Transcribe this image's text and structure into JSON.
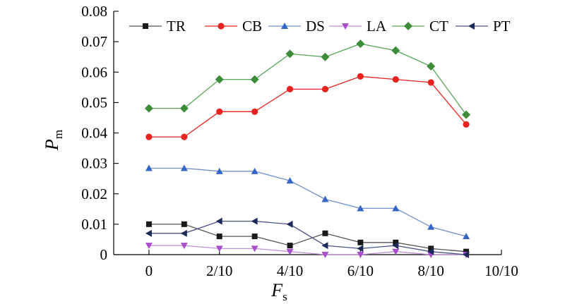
{
  "chart_data": {
    "type": "line",
    "xlabel": {
      "main": "F",
      "sub": "s"
    },
    "ylabel": {
      "main": "P",
      "sub": "m"
    },
    "x": [
      0,
      0.1,
      0.2,
      0.3,
      0.4,
      0.5,
      0.6,
      0.7,
      0.8,
      0.9
    ],
    "xlim": [
      -0.1,
      1.0
    ],
    "ylim": [
      0,
      0.08
    ],
    "xticks": [
      {
        "value": 0,
        "label": "0"
      },
      {
        "value": 0.2,
        "label": "2/10"
      },
      {
        "value": 0.4,
        "label": "4/10"
      },
      {
        "value": 0.6,
        "label": "6/10"
      },
      {
        "value": 0.8,
        "label": "8/10"
      },
      {
        "value": 1.0,
        "label": "10/10"
      }
    ],
    "yticks": [
      {
        "value": 0,
        "label": "0"
      },
      {
        "value": 0.01,
        "label": "0.01"
      },
      {
        "value": 0.02,
        "label": "0.02"
      },
      {
        "value": 0.03,
        "label": "0.03"
      },
      {
        "value": 0.04,
        "label": "0.04"
      },
      {
        "value": 0.05,
        "label": "0.05"
      },
      {
        "value": 0.06,
        "label": "0.06"
      },
      {
        "value": 0.07,
        "label": "0.07"
      },
      {
        "value": 0.08,
        "label": "0.08"
      }
    ],
    "grid": false,
    "legend": {
      "placement": "top",
      "orientation": "horizontal"
    },
    "series": [
      {
        "name": "TR",
        "marker": "square",
        "marker_color": "#1a1a1a",
        "line_color": "#555555",
        "values": [
          0.01,
          0.01,
          0.006,
          0.006,
          0.003,
          0.007,
          0.004,
          0.004,
          0.002,
          0.001
        ]
      },
      {
        "name": "CB",
        "marker": "circle",
        "marker_color": "#e8231f",
        "line_color": "#e8231f",
        "values": [
          0.0387,
          0.0387,
          0.047,
          0.047,
          0.0544,
          0.0544,
          0.0586,
          0.0576,
          0.0566,
          0.0428
        ]
      },
      {
        "name": "DS",
        "marker": "triangle-up",
        "marker_color": "#3566c6",
        "line_color": "#6f8fca",
        "values": [
          0.0284,
          0.0284,
          0.0274,
          0.0274,
          0.0243,
          0.0182,
          0.0152,
          0.0152,
          0.0091,
          0.006
        ]
      },
      {
        "name": "LA",
        "marker": "triangle-down",
        "marker_color": "#a84fc9",
        "line_color": "#c08fd6",
        "values": [
          0.003,
          0.003,
          0.002,
          0.002,
          0.001,
          0,
          0,
          0.001,
          0,
          0
        ]
      },
      {
        "name": "CT",
        "marker": "diamond",
        "marker_color": "#3d8c3a",
        "line_color": "#58a65a",
        "values": [
          0.0481,
          0.0481,
          0.0576,
          0.0576,
          0.066,
          0.065,
          0.0693,
          0.0671,
          0.0619,
          0.046
        ]
      },
      {
        "name": "PT",
        "marker": "triangle-left",
        "marker_color": "#1f2a5c",
        "line_color": "#4a5384",
        "values": [
          0.007,
          0.007,
          0.011,
          0.011,
          0.01,
          0.003,
          0.002,
          0.003,
          0.001,
          0
        ]
      }
    ]
  }
}
